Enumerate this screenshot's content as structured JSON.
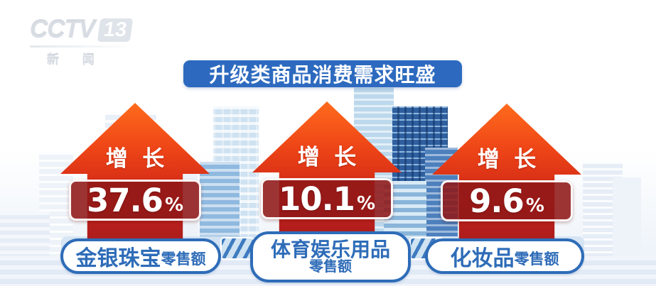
{
  "channel": {
    "logo_text": "CCTV",
    "logo_number": "13",
    "logo_sub": "新 闻"
  },
  "title": "升级类商品消费需求旺盛",
  "items": [
    {
      "growth_label": "增 长",
      "value": "37.6",
      "unit": "%",
      "label_main": "金银珠宝",
      "label_suffix": "零售额"
    },
    {
      "growth_label": "增 长",
      "value": "10.1",
      "unit": "%",
      "label_main": "体育娱乐用品",
      "label_suffix": "零售额"
    },
    {
      "growth_label": "增 长",
      "value": "9.6",
      "unit": "%",
      "label_main": "化妆品",
      "label_suffix": "零售额"
    }
  ],
  "colors": {
    "banner_blue": "#2d6abf",
    "label_blue": "#2e6cb8",
    "arrow_red_top": "#ff6b1c",
    "arrow_red_bottom": "#a81d1d",
    "value_box_red": "#8f1818"
  },
  "chart_data": {
    "type": "bar",
    "title": "升级类商品消费需求旺盛",
    "categories": [
      "金银珠宝零售额",
      "体育娱乐用品零售额",
      "化妆品零售额"
    ],
    "values": [
      37.6,
      10.1,
      9.6
    ],
    "unit": "%",
    "annotation": "增长",
    "legend_position": "none",
    "grid": false
  }
}
